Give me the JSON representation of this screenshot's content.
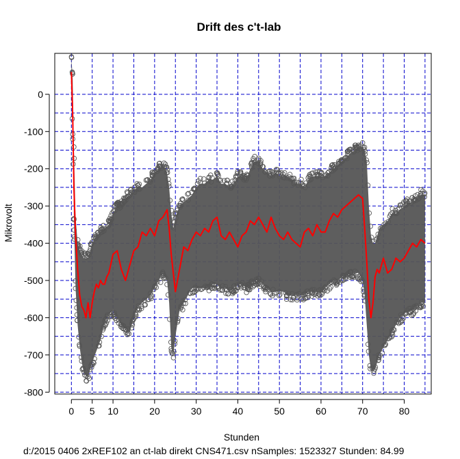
{
  "chart_data": {
    "type": "scatter",
    "title": "Drift des c't-lab",
    "xlabel": "Stunden",
    "ylabel": "Mikrovolt",
    "subtitle": "d:/2015 0406 2xREF102 an ct-lab direkt CNS471.csv  nSamples:  1523327 Stunden:  84.99",
    "xlim": [
      -4,
      86.5
    ],
    "ylim": [
      -805,
      110
    ],
    "x_ticks": [
      0,
      5,
      10,
      20,
      30,
      40,
      50,
      60,
      70,
      80
    ],
    "x_tick_labels": [
      "0",
      "5",
      "10",
      "20",
      "30",
      "40",
      "50",
      "60",
      "70",
      "80"
    ],
    "y_ticks": [
      0,
      -100,
      -200,
      -300,
      -400,
      -500,
      -600,
      -700,
      -800
    ],
    "y_tick_labels": [
      "0",
      "-100",
      "-200",
      "-300",
      "-400",
      "-500",
      "-600",
      "-700",
      "-800"
    ],
    "grid": true,
    "grid_x": [
      0,
      5,
      10,
      15,
      20,
      25,
      30,
      35,
      40,
      45,
      50,
      55,
      60,
      65,
      70,
      75,
      80,
      85
    ],
    "grid_y": [
      0,
      -50,
      -100,
      -150,
      -200,
      -250,
      -300,
      -350,
      -400,
      -450,
      -500,
      -550,
      -600,
      -650,
      -700,
      -750,
      -800
    ],
    "colors": {
      "grid": "#0000cc",
      "points": "#555555",
      "mean_line": "#ff0000"
    },
    "series": [
      {
        "kind": "points-envelope",
        "x": [
          0,
          0.3,
          0.6,
          1,
          1.5,
          2,
          2.5,
          3,
          4,
          5,
          6,
          7,
          8,
          9,
          10,
          11,
          12,
          13,
          14,
          15,
          16,
          17,
          18,
          19,
          20,
          21,
          22,
          23,
          23.5,
          24,
          24.5,
          25,
          26,
          27,
          28,
          29,
          30,
          31,
          32,
          33,
          34,
          35,
          36,
          37,
          38,
          39,
          40,
          41,
          42,
          43,
          44,
          45,
          46,
          47,
          48,
          49,
          50,
          51,
          52,
          53,
          54,
          55,
          56,
          57,
          58,
          59,
          60,
          61,
          62,
          63,
          64,
          65,
          66,
          67,
          68,
          69,
          70,
          70.5,
          71,
          71.5,
          72,
          72.5,
          73,
          73.5,
          74,
          75,
          76,
          77,
          78,
          79,
          80,
          81,
          82,
          83,
          84,
          85
        ],
        "upper": [
          100,
          40,
          -150,
          -330,
          -400,
          -420,
          -430,
          -440,
          -440,
          -400,
          -380,
          -370,
          -360,
          -350,
          -320,
          -300,
          -300,
          -280,
          -270,
          -260,
          -250,
          -250,
          -240,
          -230,
          -210,
          -200,
          -190,
          -210,
          -250,
          -320,
          -360,
          -330,
          -300,
          -290,
          -280,
          -270,
          -250,
          -240,
          -240,
          -230,
          -230,
          -220,
          -240,
          -240,
          -250,
          -240,
          -220,
          -220,
          -230,
          -200,
          -180,
          -180,
          -200,
          -210,
          -220,
          -210,
          -220,
          -220,
          -220,
          -230,
          -240,
          -240,
          -250,
          -230,
          -220,
          -220,
          -220,
          -220,
          -210,
          -200,
          -190,
          -180,
          -170,
          -160,
          -150,
          -145,
          -140,
          -150,
          -180,
          -300,
          -380,
          -400,
          -400,
          -380,
          -360,
          -350,
          -340,
          -320,
          -320,
          -310,
          -300,
          -290,
          -290,
          -280,
          -270,
          -270
        ],
        "lower": [
          0,
          -100,
          -330,
          -520,
          -620,
          -680,
          -720,
          -750,
          -760,
          -720,
          -690,
          -660,
          -610,
          -590,
          -580,
          -600,
          -620,
          -630,
          -640,
          -600,
          -570,
          -560,
          -550,
          -540,
          -520,
          -500,
          -480,
          -500,
          -560,
          -680,
          -700,
          -650,
          -580,
          -560,
          -540,
          -520,
          -520,
          -520,
          -520,
          -520,
          -510,
          -510,
          -520,
          -520,
          -530,
          -520,
          -510,
          -510,
          -520,
          -510,
          -500,
          -500,
          -510,
          -520,
          -530,
          -530,
          -530,
          -530,
          -540,
          -540,
          -540,
          -540,
          -540,
          -530,
          -530,
          -530,
          -530,
          -520,
          -510,
          -500,
          -500,
          -490,
          -490,
          -480,
          -480,
          -480,
          -500,
          -540,
          -620,
          -700,
          -740,
          -740,
          -740,
          -720,
          -700,
          -680,
          -660,
          -640,
          -620,
          -600,
          -590,
          -580,
          -580,
          -570,
          -560,
          -560
        ]
      },
      {
        "kind": "mean-line",
        "x": [
          0,
          0.3,
          0.6,
          1,
          1.5,
          2,
          2.5,
          3,
          3.5,
          4,
          4.5,
          5,
          5.5,
          6,
          6.5,
          7,
          7.5,
          8,
          8.5,
          9,
          10,
          11,
          12,
          13,
          14,
          15,
          16,
          17,
          18,
          19,
          20,
          21,
          22,
          23,
          23.5,
          24,
          24.5,
          25,
          26,
          27,
          28,
          29,
          30,
          31,
          32,
          33,
          34,
          35,
          36,
          37,
          38,
          39,
          40,
          41,
          42,
          43,
          44,
          45,
          46,
          47,
          48,
          49,
          50,
          51,
          52,
          53,
          54,
          55,
          56,
          57,
          58,
          59,
          60,
          61,
          62,
          63,
          64,
          65,
          66,
          67,
          68,
          69,
          70,
          70.5,
          71,
          71.5,
          72,
          72.5,
          73,
          73.5,
          74,
          74.5,
          75,
          76,
          77,
          78,
          79,
          80,
          81,
          82,
          83,
          84,
          85
        ],
        "y": [
          60,
          -50,
          -250,
          -380,
          -470,
          -540,
          -570,
          -580,
          -600,
          -560,
          -600,
          -560,
          -530,
          -510,
          -520,
          -500,
          -510,
          -510,
          -490,
          -480,
          -430,
          -420,
          -470,
          -500,
          -460,
          -420,
          -410,
          -370,
          -380,
          -360,
          -380,
          -340,
          -330,
          -310,
          -360,
          -430,
          -480,
          -530,
          -470,
          -410,
          -420,
          -390,
          -370,
          -380,
          -360,
          -370,
          -340,
          -330,
          -380,
          -390,
          -370,
          -390,
          -410,
          -380,
          -370,
          -340,
          -350,
          -330,
          -350,
          -370,
          -330,
          -360,
          -380,
          -390,
          -370,
          -390,
          -400,
          -410,
          -370,
          -360,
          -380,
          -350,
          -370,
          -370,
          -340,
          -320,
          -330,
          -310,
          -300,
          -290,
          -280,
          -270,
          -280,
          -360,
          -450,
          -550,
          -600,
          -560,
          -490,
          -470,
          -480,
          -460,
          -440,
          -480,
          -470,
          -440,
          -450,
          -440,
          -420,
          -400,
          -410,
          -390,
          -400
        ]
      }
    ]
  }
}
